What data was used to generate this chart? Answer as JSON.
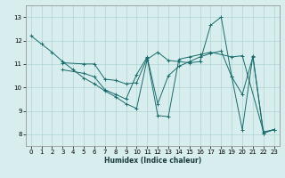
{
  "xlabel": "Humidex (Indice chaleur)",
  "xlim": [
    -0.5,
    23.5
  ],
  "ylim": [
    7.5,
    13.5
  ],
  "xticks": [
    0,
    1,
    2,
    3,
    4,
    5,
    6,
    7,
    8,
    9,
    10,
    11,
    12,
    13,
    14,
    15,
    16,
    17,
    18,
    19,
    20,
    21,
    22,
    23
  ],
  "yticks": [
    8,
    9,
    10,
    11,
    12,
    13
  ],
  "bg_color": "#d8eeee",
  "grid_color": "#b0d4d4",
  "line_color": "#1a6b6b",
  "lines": [
    {
      "x": [
        0,
        1,
        2,
        3,
        4,
        5,
        6,
        7,
        8,
        9,
        10,
        11,
        12,
        13,
        14,
        15,
        16,
        17,
        18,
        19,
        20,
        21,
        22,
        23
      ],
      "y": [
        12.2,
        11.85,
        11.5,
        11.1,
        10.75,
        10.4,
        10.15,
        9.85,
        9.6,
        9.3,
        9.1,
        11.2,
        11.5,
        11.15,
        11.1,
        11.05,
        11.1,
        12.65,
        13.0,
        10.45,
        9.7,
        11.3,
        8.05,
        8.2
      ]
    },
    {
      "x": [
        3,
        5,
        6,
        7,
        8,
        9,
        10,
        11,
        12,
        13,
        14,
        15,
        16,
        17,
        19,
        20,
        22,
        23
      ],
      "y": [
        11.05,
        11.0,
        11.0,
        10.35,
        10.3,
        10.15,
        10.2,
        11.25,
        8.8,
        8.75,
        11.2,
        11.3,
        11.4,
        11.5,
        11.3,
        11.35,
        8.1,
        8.2
      ]
    },
    {
      "x": [
        3,
        5,
        6,
        7,
        8,
        9,
        10,
        11,
        12,
        13,
        14,
        15,
        16,
        17,
        18,
        19,
        20,
        21,
        22,
        23
      ],
      "y": [
        10.75,
        10.6,
        10.45,
        9.9,
        9.7,
        9.5,
        10.55,
        11.3,
        9.3,
        10.5,
        10.9,
        11.1,
        11.3,
        11.45,
        11.55,
        10.45,
        8.2,
        11.35,
        8.05,
        8.2
      ]
    }
  ]
}
